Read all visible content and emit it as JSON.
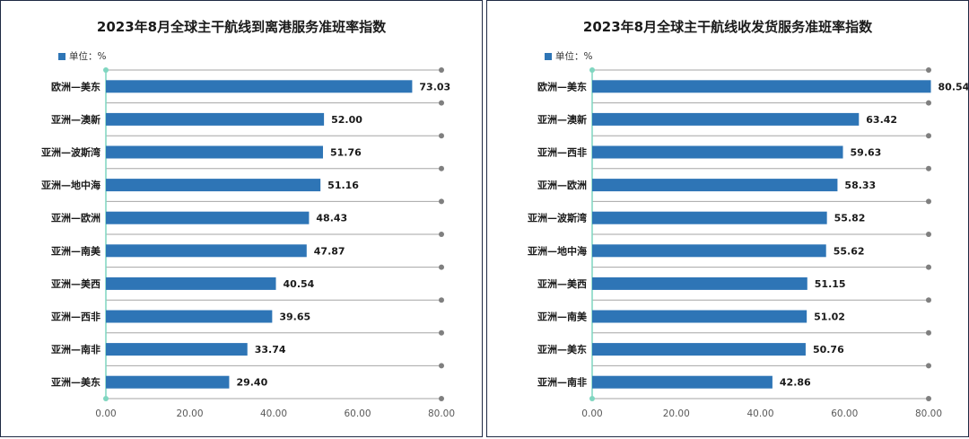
{
  "chart_data": [
    {
      "type": "bar",
      "orientation": "horizontal",
      "title": "2023年8月全球主干航线到离港服务准班率指数",
      "legend": "单位：%",
      "legend_position": "top-left",
      "categories": [
        "欧洲—美东",
        "亚洲—澳新",
        "亚洲—波斯湾",
        "亚洲—地中海",
        "亚洲—欧洲",
        "亚洲—南美",
        "亚洲—美西",
        "亚洲—西非",
        "亚洲—南非",
        "亚洲—美东"
      ],
      "values": [
        73.03,
        52.0,
        51.76,
        51.16,
        48.43,
        47.87,
        40.54,
        39.65,
        33.74,
        29.4
      ],
      "xlim": [
        0,
        80
      ],
      "xticks": [
        "0.00",
        "20.00",
        "40.00",
        "60.00",
        "80.00"
      ],
      "grid": true,
      "bar_color": "#2e75b6"
    },
    {
      "type": "bar",
      "orientation": "horizontal",
      "title": "2023年8月全球主干航线收发货服务准班率指数",
      "legend": "单位：%",
      "legend_position": "top-left",
      "categories": [
        "欧洲—美东",
        "亚洲—澳新",
        "亚洲—西非",
        "亚洲—欧洲",
        "亚洲—波斯湾",
        "亚洲—地中海",
        "亚洲—美西",
        "亚洲—南美",
        "亚洲—美东",
        "亚洲—南非"
      ],
      "values": [
        80.54,
        63.42,
        59.63,
        58.33,
        55.82,
        55.62,
        51.15,
        51.02,
        50.76,
        42.86
      ],
      "xlim": [
        0,
        80
      ],
      "xticks": [
        "0.00",
        "20.00",
        "40.00",
        "60.00",
        "80.00"
      ],
      "grid": true,
      "bar_color": "#2e75b6"
    }
  ]
}
